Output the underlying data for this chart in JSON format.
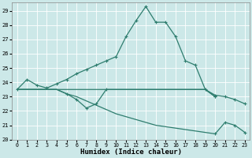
{
  "xlabel": "Humidex (Indice chaleur)",
  "bg_color": "#cce8e8",
  "grid_color": "#ffffff",
  "line_color": "#2e7d6e",
  "xlim": [
    -0.5,
    23.5
  ],
  "ylim": [
    20,
    29.6
  ],
  "yticks": [
    20,
    21,
    22,
    23,
    24,
    25,
    26,
    27,
    28,
    29
  ],
  "xticks": [
    0,
    1,
    2,
    3,
    4,
    5,
    6,
    7,
    8,
    9,
    10,
    11,
    12,
    13,
    14,
    15,
    16,
    17,
    18,
    19,
    20,
    21,
    22,
    23
  ],
  "line1": {
    "x": [
      0,
      1,
      2,
      3,
      4,
      5,
      6,
      7,
      8,
      9,
      10,
      11,
      12,
      13,
      14,
      15,
      16,
      17,
      18,
      19,
      20,
      21,
      22,
      23
    ],
    "y": [
      23.5,
      24.2,
      23.8,
      23.6,
      23.9,
      24.2,
      24.6,
      24.9,
      25.2,
      25.5,
      25.8,
      27.2,
      28.3,
      29.3,
      28.2,
      28.2,
      27.2,
      25.5,
      25.2,
      23.5,
      23.1,
      23.0,
      22.8,
      22.5
    ]
  },
  "line2": {
    "x": [
      0,
      1,
      2,
      3,
      4,
      5,
      6,
      7,
      8,
      9,
      10,
      11,
      12,
      13,
      14,
      15,
      16,
      17,
      18,
      19,
      20
    ],
    "y": [
      23.5,
      23.5,
      23.5,
      23.5,
      23.5,
      23.5,
      23.5,
      23.5,
      23.5,
      23.5,
      23.5,
      23.5,
      23.5,
      23.5,
      23.5,
      23.5,
      23.5,
      23.5,
      23.5,
      23.5,
      23.0
    ]
  },
  "line3": {
    "x": [
      0,
      1,
      2,
      3,
      4,
      5,
      6,
      7,
      8,
      9,
      10,
      11,
      12,
      13,
      14,
      15,
      16,
      17,
      18,
      19,
      20
    ],
    "y": [
      23.5,
      23.5,
      23.5,
      23.5,
      23.5,
      23.2,
      22.8,
      22.2,
      22.5,
      23.5,
      23.5,
      23.5,
      23.5,
      23.5,
      23.5,
      23.5,
      23.5,
      23.5,
      23.5,
      23.5,
      23.0
    ]
  },
  "line4": {
    "x": [
      0,
      1,
      2,
      3,
      4,
      5,
      6,
      7,
      8,
      9,
      10,
      11,
      12,
      13,
      14,
      15,
      16,
      17,
      18,
      19,
      20,
      21,
      22,
      23
    ],
    "y": [
      23.5,
      23.5,
      23.5,
      23.5,
      23.5,
      23.2,
      23.0,
      22.7,
      22.4,
      22.1,
      21.8,
      21.6,
      21.4,
      21.2,
      21.0,
      20.9,
      20.8,
      20.7,
      20.6,
      20.5,
      20.4,
      21.2,
      21.0,
      20.5
    ]
  }
}
